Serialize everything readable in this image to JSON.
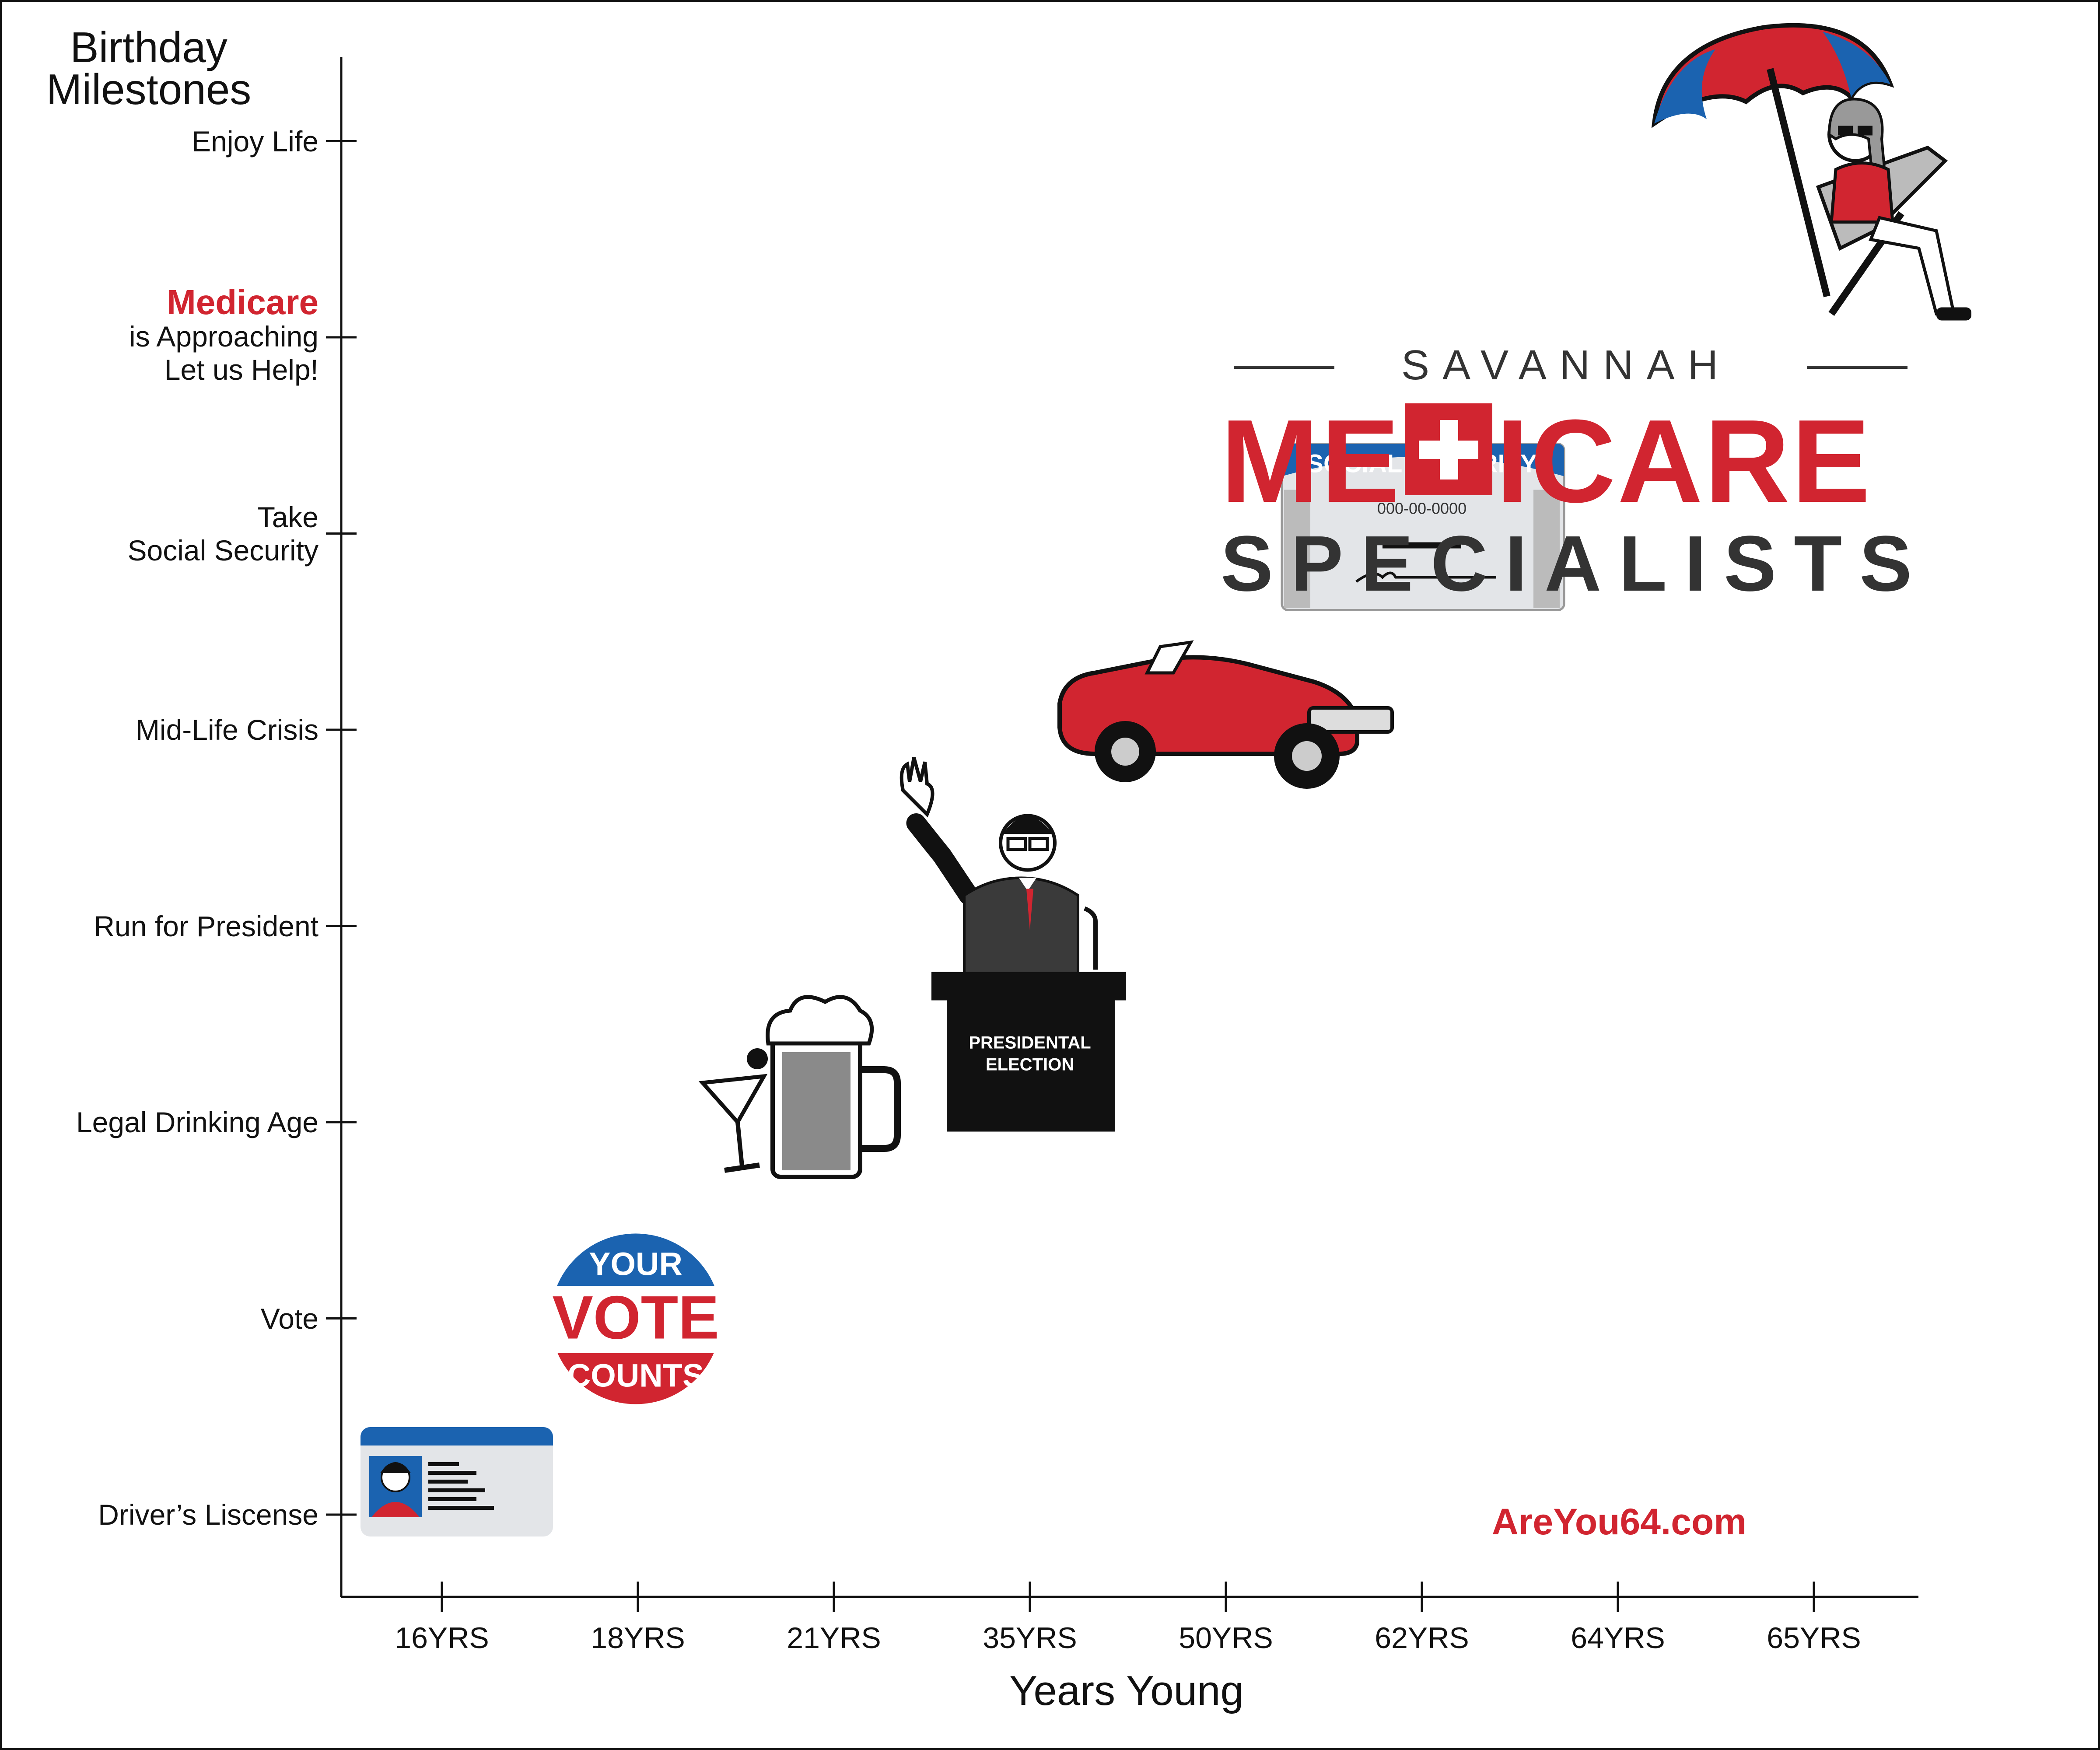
{
  "chart_data": {
    "type": "scatter",
    "x_axis": {
      "title": "Years Young",
      "categories": [
        "16YRS",
        "18YRS",
        "21YRS",
        "35YRS",
        "50YRS",
        "62YRS",
        "64YRS",
        "65YRS"
      ]
    },
    "y_axis": {
      "title": "Birthday Milestones",
      "categories": [
        {
          "label": "Driver’s Liscense"
        },
        {
          "label": "Vote"
        },
        {
          "label": "Legal Drinking Age"
        },
        {
          "label": "Run for President"
        },
        {
          "label": "Mid-Life Crisis"
        },
        {
          "label": "Take Social Security"
        },
        {
          "label": "Medicare is Approaching Let us Help!",
          "highlight": "Medicare",
          "lines": [
            "is Approaching",
            "Let us Help!"
          ]
        },
        {
          "label": "Enjoy Life"
        }
      ]
    },
    "points": [
      {
        "x": "16YRS",
        "y": "Driver’s Liscense",
        "icon": "drivers-license-card-icon"
      },
      {
        "x": "18YRS",
        "y": "Vote",
        "icon": "your-vote-counts-button-icon",
        "text": [
          "YOUR",
          "VOTE",
          "COUNTS"
        ]
      },
      {
        "x": "21YRS",
        "y": "Legal Drinking Age",
        "icon": "martini-and-beer-mug-icon"
      },
      {
        "x": "35YRS",
        "y": "Run for President",
        "icon": "politician-at-podium-icon",
        "text": [
          "PRESIDENTAL",
          "ELECTION"
        ]
      },
      {
        "x": "50YRS",
        "y": "Mid-Life Crisis",
        "icon": "red-convertible-car-icon"
      },
      {
        "x": "62YRS",
        "y": "Take Social Security",
        "icon": "social-security-card-icon",
        "text": [
          "SOCIAL SECURITY",
          "000-00-0000"
        ]
      },
      {
        "x": "65YRS",
        "y": "Enjoy Life",
        "icon": "woman-under-beach-umbrella-icon"
      }
    ],
    "colors": {
      "red": "#d12530",
      "blue": "#1b63b0",
      "dark": "#333333"
    }
  },
  "brand": {
    "top": "SAVANNAH",
    "main_left": "ME",
    "main_right": "ICARE",
    "sub": "SPECIALISTS"
  },
  "website": "AreYou64.com"
}
